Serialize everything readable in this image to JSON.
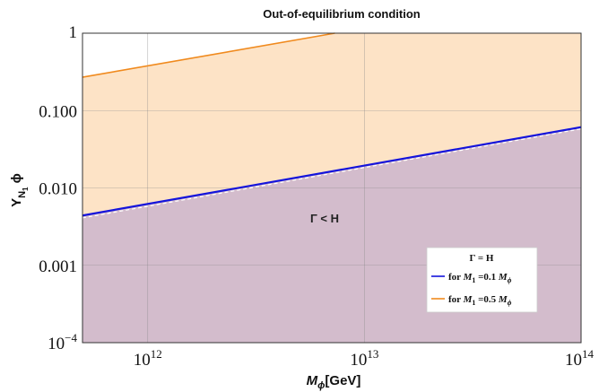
{
  "chart_data": {
    "type": "line",
    "title": "Out-of-equilibrium condition",
    "xlabel": {
      "symbol": "M",
      "sub": "ϕ",
      "unit": "[GeV]"
    },
    "ylabel": {
      "symbol": "Y",
      "sub": "N",
      "subsub": "1",
      "tail": " ϕ"
    },
    "x_scale": "log",
    "y_scale": "log",
    "xlim": [
      500000000000.0,
      100000000000000.0
    ],
    "ylim": [
      0.0001,
      1
    ],
    "x_ticks": [
      {
        "value": 1000000000000.0,
        "base": "10",
        "exp": "12"
      },
      {
        "value": 10000000000000.0,
        "base": "10",
        "exp": "13"
      },
      {
        "value": 100000000000000.0,
        "base": "10",
        "exp": "14"
      }
    ],
    "y_ticks": [
      {
        "value": 0.0001,
        "label": "10",
        "exp": "−4"
      },
      {
        "value": 0.001,
        "label": "0.001"
      },
      {
        "value": 0.01,
        "label": "0.010"
      },
      {
        "value": 0.1,
        "label": "0.100"
      },
      {
        "value": 1,
        "label": "1"
      }
    ],
    "grid": true,
    "series": [
      {
        "name": "for M₁ =0.1 M_ϕ",
        "color": "#1414dc",
        "x": [
          500000000000.0,
          100000000000000.0
        ],
        "y": [
          0.0044,
          0.061
        ]
      },
      {
        "name": "for M₁ =0.5 M_ϕ",
        "color": "#f08a1e",
        "x": [
          500000000000.0,
          7300000000000.0
        ],
        "y": [
          0.27,
          1.0
        ]
      }
    ],
    "dashed_reference": {
      "color": "#ffffff",
      "x": [
        500000000000.0,
        100000000000000.0
      ],
      "y": [
        0.0041,
        0.058
      ]
    },
    "regions": [
      {
        "color": "#fde3c6",
        "bounded_below_by": "series 0",
        "bounded_above_by": "series 1"
      },
      {
        "color": "#d3bccc",
        "bounded_above_by": "series 0"
      }
    ],
    "annotation": "Γ < H",
    "legend": {
      "title": "Γ = H",
      "position": "lower-right",
      "items": [
        {
          "prefix": "for ",
          "m": "M",
          "msub": "1",
          "mid": " =0.1 ",
          "m2": "M",
          "m2sub": "ϕ",
          "color": "#1414dc"
        },
        {
          "prefix": "for ",
          "m": "M",
          "msub": "1",
          "mid": " =0.5 ",
          "m2": "M",
          "m2sub": "ϕ",
          "color": "#f08a1e"
        }
      ]
    }
  }
}
